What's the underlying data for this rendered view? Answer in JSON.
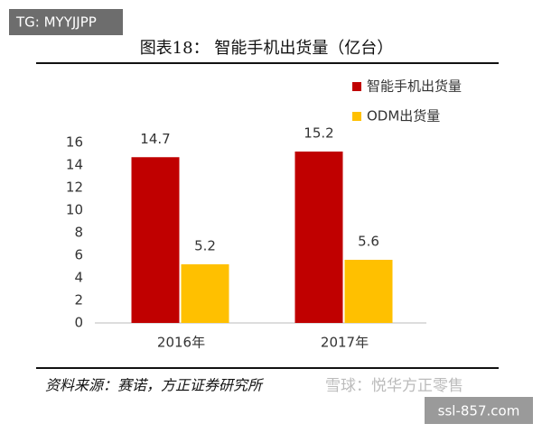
{
  "tag": "TG: MYYJJPP",
  "chart_data": {
    "type": "bar",
    "title": "图表18：  智能手机出货量（亿台）",
    "categories": [
      "2016年",
      "2017年"
    ],
    "series": [
      {
        "name": "智能手机出货量",
        "color": "#c00000",
        "values": [
          14.7,
          15.2
        ]
      },
      {
        "name": "ODM出货量",
        "color": "#ffc000",
        "values": [
          5.2,
          5.6
        ]
      }
    ],
    "ylim": [
      0,
      16
    ],
    "yticks": [
      0,
      2,
      4,
      6,
      8,
      10,
      12,
      14,
      16
    ],
    "grid": false,
    "legend": "top-right"
  },
  "source": "资料来源：赛诺，方正证券研究所",
  "watermark": "雪球：悦华方正零售",
  "site": "ssl-857.com"
}
